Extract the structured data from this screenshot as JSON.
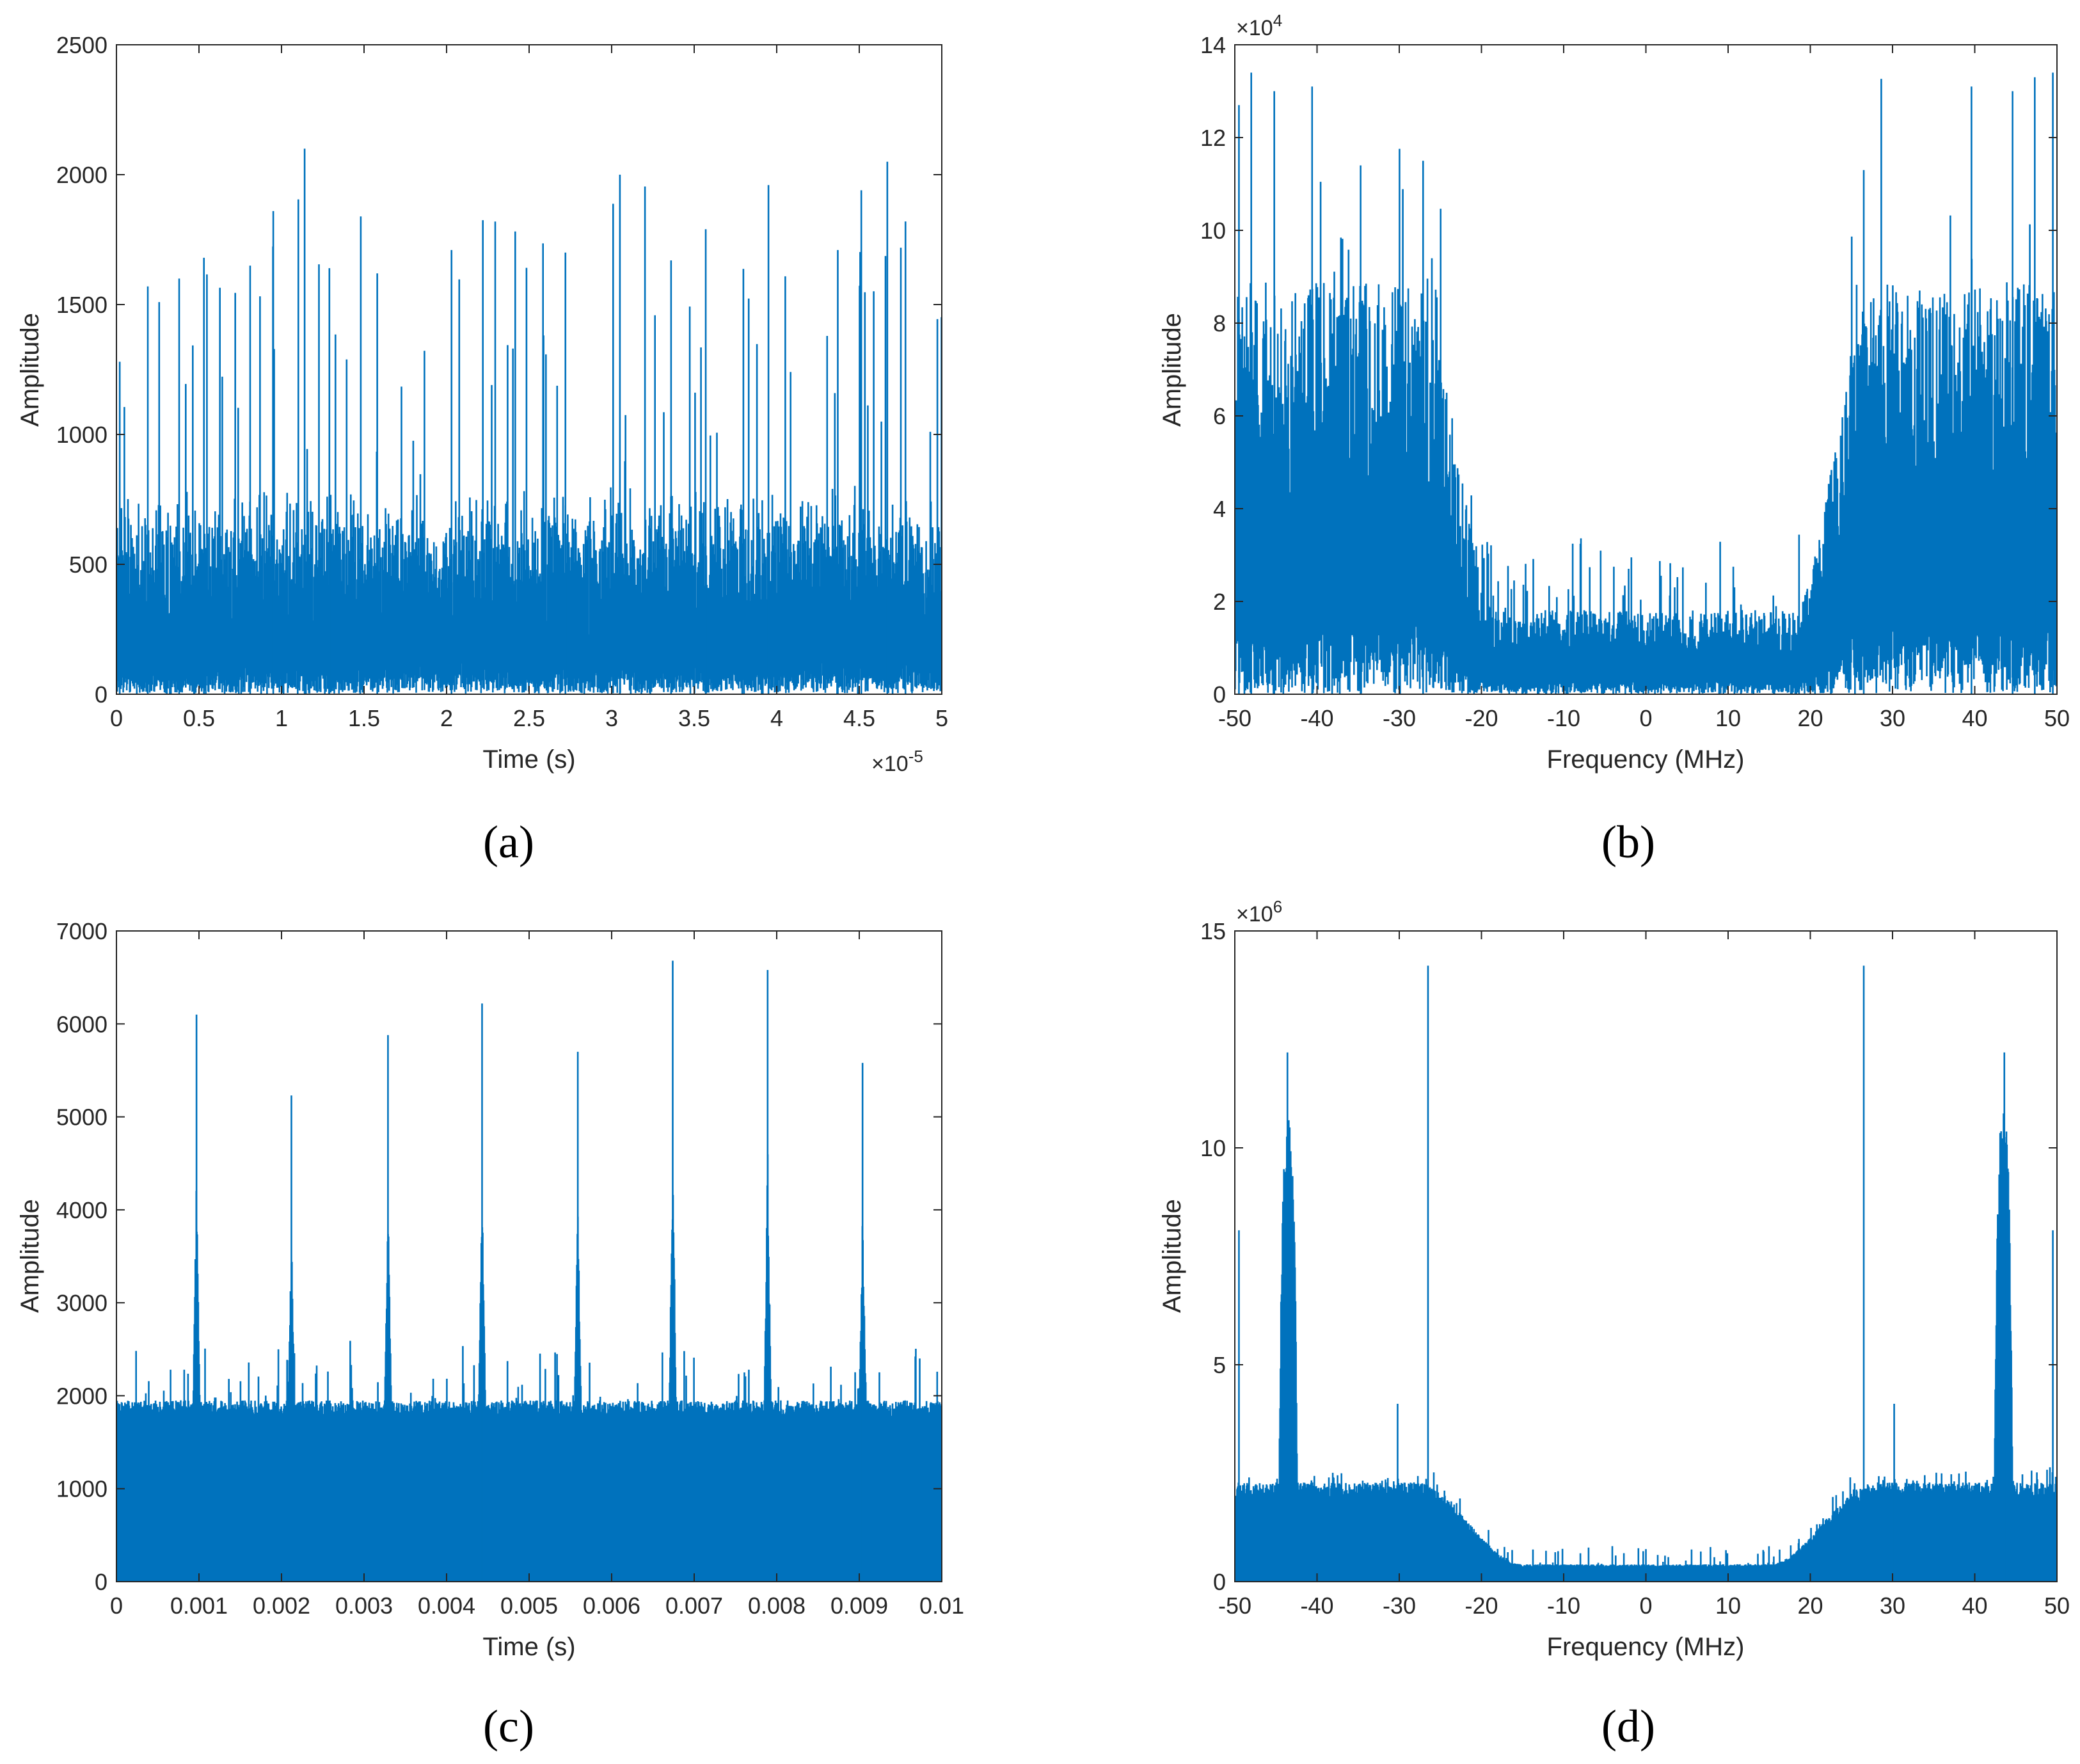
{
  "colors": {
    "series": "#0072BD",
    "axes": "#262626",
    "background": "#ffffff"
  },
  "chart_data": [
    {
      "panel": "(a)",
      "type": "line",
      "title": "",
      "xlabel": "Time (s)",
      "ylabel": "Amplitude",
      "xlim": [
        0,
        5
      ],
      "ylim": [
        0,
        2500
      ],
      "x_exponent": "×10",
      "x_exponent_power": "-5",
      "y_exponent": "",
      "y_exponent_power": "",
      "xticks": [
        0,
        0.5,
        1,
        1.5,
        2,
        2.5,
        3,
        3.5,
        4,
        4.5,
        5
      ],
      "xtick_labels": [
        "0",
        "0.5",
        "1",
        "1.5",
        "2",
        "2.5",
        "3",
        "3.5",
        "4",
        "4.5",
        "5"
      ],
      "yticks": [
        0,
        500,
        1000,
        1500,
        2000,
        2500
      ],
      "ytick_labels": [
        "0",
        "500",
        "1000",
        "1500",
        "2000",
        "2500"
      ],
      "signal": {
        "kind": "noise",
        "seed": 11,
        "samples": 1400,
        "base": 0,
        "mean": 380,
        "spread": 260,
        "spike_prob": 0.05,
        "spike_max": 1400
      },
      "peaks": [
        {
          "x": 0.02,
          "y": 1280
        },
        {
          "x": 0.19,
          "y": 1570
        },
        {
          "x": 0.38,
          "y": 1600
        },
        {
          "x": 0.53,
          "y": 1680
        },
        {
          "x": 0.81,
          "y": 1650
        },
        {
          "x": 0.95,
          "y": 1860
        },
        {
          "x": 1.14,
          "y": 2100
        },
        {
          "x": 1.29,
          "y": 1640
        },
        {
          "x": 1.58,
          "y": 1620
        },
        {
          "x": 2.03,
          "y": 1710
        },
        {
          "x": 2.72,
          "y": 1700
        },
        {
          "x": 3.05,
          "y": 2000
        },
        {
          "x": 3.36,
          "y": 1670
        },
        {
          "x": 3.57,
          "y": 1790
        },
        {
          "x": 3.95,
          "y": 1960
        },
        {
          "x": 4.37,
          "y": 1710
        },
        {
          "x": 4.67,
          "y": 2050
        },
        {
          "x": 4.78,
          "y": 1820
        }
      ]
    },
    {
      "panel": "(b)",
      "type": "line",
      "title": "",
      "xlabel": "Frequency (MHz)",
      "ylabel": "Amplitude",
      "xlim": [
        -50,
        50
      ],
      "ylim": [
        0,
        14
      ],
      "x_exponent": "",
      "x_exponent_power": "",
      "y_exponent": "×10",
      "y_exponent_power": "4",
      "xticks": [
        -50,
        -40,
        -30,
        -20,
        -10,
        0,
        10,
        20,
        30,
        40,
        50
      ],
      "xtick_labels": [
        "-50",
        "-40",
        "-30",
        "-20",
        "-10",
        "0",
        "10",
        "20",
        "30",
        "40",
        "50"
      ],
      "yticks": [
        0,
        2,
        4,
        6,
        8,
        10,
        12,
        14
      ],
      "ytick_labels": [
        "0",
        "2",
        "4",
        "6",
        "8",
        "10",
        "12",
        "14"
      ],
      "signal": {
        "kind": "spectrum",
        "seed": 23,
        "samples": 1500,
        "base": 0,
        "center_level": 0.9,
        "edge_level": 4.4,
        "edge_start": 18,
        "edge_full": 28,
        "spread_ratio": 0.85,
        "spike_prob": 0.06,
        "spike_max": 4.5
      },
      "peaks": [
        {
          "x": -49.5,
          "y": 12.7
        },
        {
          "x": -48,
          "y": 13.4
        },
        {
          "x": -45.2,
          "y": 13.0
        },
        {
          "x": -40.6,
          "y": 13.1
        },
        {
          "x": -34.7,
          "y": 11.4
        },
        {
          "x": -27.1,
          "y": 11.5
        },
        {
          "x": 26.5,
          "y": 11.3
        },
        {
          "x": 39.6,
          "y": 13.1
        },
        {
          "x": 44.6,
          "y": 13.0
        },
        {
          "x": 47.3,
          "y": 13.3
        },
        {
          "x": 49.5,
          "y": 13.4
        }
      ]
    },
    {
      "panel": "(c)",
      "type": "line",
      "title": "",
      "xlabel": "Time (s)",
      "ylabel": "Amplitude",
      "xlim": [
        0,
        0.01
      ],
      "ylim": [
        0,
        7000
      ],
      "x_exponent": "",
      "x_exponent_power": "",
      "y_exponent": "",
      "y_exponent_power": "",
      "xticks": [
        0,
        0.001,
        0.002,
        0.003,
        0.004,
        0.005,
        0.006,
        0.007,
        0.008,
        0.009,
        0.01
      ],
      "xtick_labels": [
        "0",
        "0.001",
        "0.002",
        "0.003",
        "0.004",
        "0.005",
        "0.006",
        "0.007",
        "0.008",
        "0.009",
        "0.01"
      ],
      "yticks": [
        0,
        1000,
        2000,
        3000,
        4000,
        5000,
        6000,
        7000
      ],
      "ytick_labels": [
        "0",
        "1000",
        "2000",
        "3000",
        "4000",
        "5000",
        "6000",
        "7000"
      ],
      "signal": {
        "kind": "pulses",
        "seed": 37,
        "samples": 1700,
        "base": 0,
        "ceiling": 1950,
        "spread": 250,
        "spike_prob": 0.05,
        "spike_max": 650,
        "pulse_width": 4e-05
      },
      "peaks": [
        {
          "x": 0.00097,
          "y": 6100
        },
        {
          "x": 0.00212,
          "y": 5230
        },
        {
          "x": 0.00329,
          "y": 5880
        },
        {
          "x": 0.00443,
          "y": 6220
        },
        {
          "x": 0.00559,
          "y": 5700
        },
        {
          "x": 0.00674,
          "y": 6680
        },
        {
          "x": 0.00789,
          "y": 6580
        },
        {
          "x": 0.00904,
          "y": 5580
        }
      ]
    },
    {
      "panel": "(d)",
      "type": "line",
      "title": "",
      "xlabel": "Frequency (MHz)",
      "ylabel": "Amplitude",
      "xlim": [
        -50,
        50
      ],
      "ylim": [
        0,
        15
      ],
      "x_exponent": "",
      "x_exponent_power": "",
      "y_exponent": "×10",
      "y_exponent_power": "6",
      "xticks": [
        -50,
        -40,
        -30,
        -20,
        -10,
        0,
        10,
        20,
        30,
        40,
        50
      ],
      "xtick_labels": [
        "-50",
        "-40",
        "-30",
        "-20",
        "-10",
        "0",
        "10",
        "20",
        "30",
        "40",
        "50"
      ],
      "yticks": [
        0,
        5,
        10,
        15
      ],
      "ytick_labels": [
        "0",
        "5",
        "10",
        "15"
      ],
      "signal": {
        "kind": "smooth",
        "seed": 53,
        "samples": 1700,
        "base": 0,
        "center_level": 0.35,
        "edge_level": 2.0,
        "edge_start": 15,
        "edge_full": 28,
        "spread_ratio": 0.12,
        "spike_prob": 0.08,
        "spike_max": 0.45
      },
      "bands": [
        {
          "center": -43.5,
          "halfwidth": 1.2,
          "level": 10.8
        },
        {
          "center": 43.5,
          "halfwidth": 1.2,
          "level": 10.8
        }
      ],
      "peaks": [
        {
          "x": -49.5,
          "y": 8.1
        },
        {
          "x": -43.6,
          "y": 12.2
        },
        {
          "x": -30.2,
          "y": 4.1
        },
        {
          "x": -26.5,
          "y": 14.2
        },
        {
          "x": 0,
          "y": 0.75
        },
        {
          "x": 26.5,
          "y": 14.2
        },
        {
          "x": 30.2,
          "y": 4.1
        },
        {
          "x": 43.6,
          "y": 12.2
        },
        {
          "x": 49.5,
          "y": 8.1
        }
      ]
    }
  ]
}
